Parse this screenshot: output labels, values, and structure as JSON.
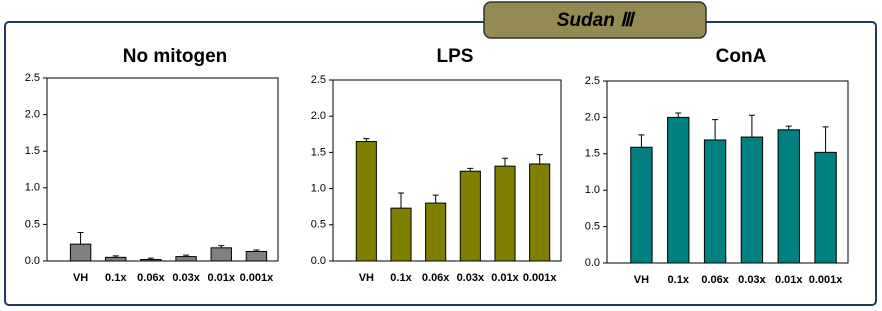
{
  "figure_title": "Sudan Ⅲ",
  "chart_data": [
    {
      "type": "bar",
      "title": "No mitogen",
      "categories": [
        "VH",
        "0.1x",
        "0.06x",
        "0.03x",
        "0.01x",
        "0.001x"
      ],
      "series": [
        {
          "color": "#808080",
          "values": [
            0.23,
            0.05,
            0.02,
            0.06,
            0.18,
            0.13
          ],
          "errors": [
            0.16,
            0.02,
            0.02,
            0.02,
            0.03,
            0.02
          ]
        }
      ],
      "ylim": [
        0,
        2.5
      ],
      "yticks": [
        {
          "value": 0,
          "label": "0.0"
        },
        0.5,
        {
          "value": 1,
          "label": "1.0"
        },
        1.5,
        {
          "value": 2,
          "label": "2.0"
        },
        2.5
      ]
    },
    {
      "type": "bar",
      "title": "LPS",
      "categories": [
        "VH",
        "0.1x",
        "0.06x",
        "0.03x",
        "0.01x",
        "0.001x"
      ],
      "series": [
        {
          "color": "#808000",
          "values": [
            1.65,
            0.73,
            0.8,
            1.24,
            1.31,
            1.34
          ],
          "errors": [
            0.04,
            0.21,
            0.11,
            0.04,
            0.11,
            0.13
          ]
        }
      ],
      "ylim": [
        0,
        2.5
      ],
      "yticks": [
        {
          "value": 0,
          "label": "0.0"
        },
        0.5,
        {
          "value": 1,
          "label": "1.0"
        },
        1.5,
        {
          "value": 2,
          "label": "2.0"
        },
        2.5
      ]
    },
    {
      "type": "bar",
      "title": "ConA",
      "categories": [
        "VH",
        "0.1x",
        "0.06x",
        "0.03x",
        "0.01x",
        "0.001x"
      ],
      "series": [
        {
          "color": "#008080",
          "values": [
            1.59,
            2.0,
            1.69,
            1.73,
            1.83,
            1.52
          ],
          "errors": [
            0.17,
            0.06,
            0.28,
            0.3,
            0.05,
            0.35
          ]
        }
      ],
      "ylim": [
        0,
        2.5
      ],
      "yticks": [
        {
          "value": 0,
          "label": "0.0"
        },
        0.5,
        {
          "value": 1,
          "label": "1.0"
        },
        1.5,
        {
          "value": 2,
          "label": "2.0"
        },
        2.5
      ]
    }
  ]
}
